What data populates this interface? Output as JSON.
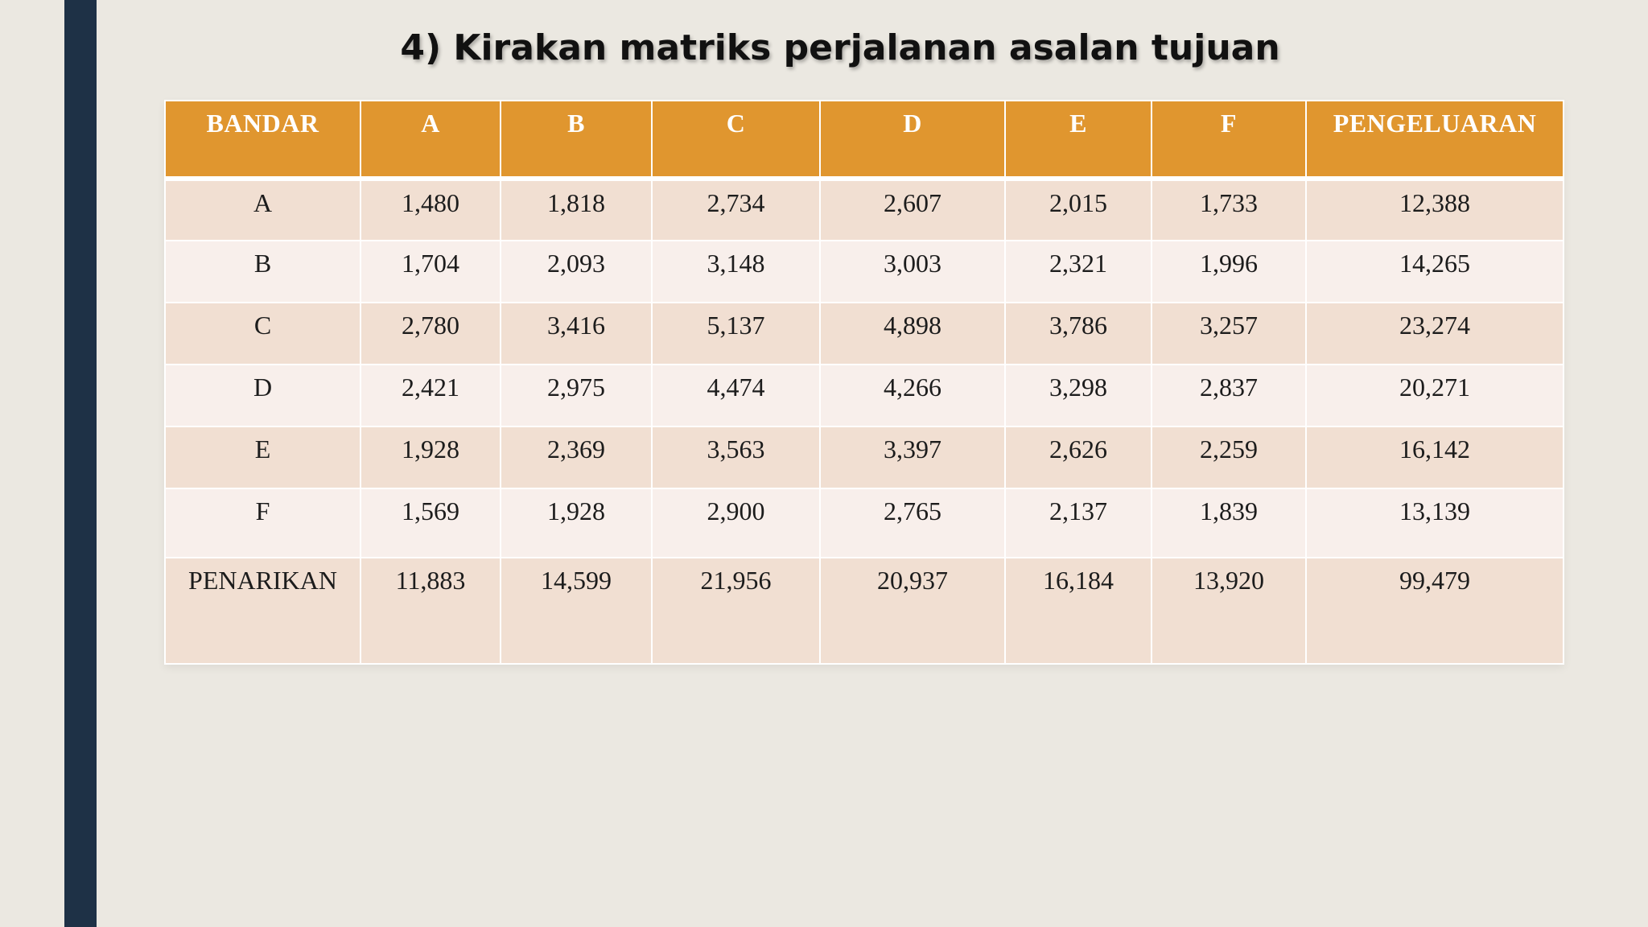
{
  "slide": {
    "title": "4) Kirakan matriks perjalanan asalan tujuan"
  },
  "table": {
    "headers": [
      "BANDAR",
      "A",
      "B",
      "C",
      "D",
      "E",
      "F",
      "PENGELUARAN"
    ],
    "rows": [
      [
        "A",
        "1,480",
        "1,818",
        "2,734",
        "2,607",
        "2,015",
        "1,733",
        "12,388"
      ],
      [
        "B",
        "1,704",
        "2,093",
        "3,148",
        "3,003",
        "2,321",
        "1,996",
        "14,265"
      ],
      [
        "C",
        "2,780",
        "3,416",
        "5,137",
        "4,898",
        "3,786",
        "3,257",
        "23,274"
      ],
      [
        "D",
        "2,421",
        "2,975",
        "4,474",
        "4,266",
        "3,298",
        "2,837",
        "20,271"
      ],
      [
        "E",
        "1,928",
        "2,369",
        "3,563",
        "3,397",
        "2,626",
        "2,259",
        "16,142"
      ],
      [
        "F",
        "1,569",
        "1,928",
        "2,900",
        "2,765",
        "2,137",
        "1,839",
        "13,139"
      ],
      [
        "PENARIKAN",
        "11,883",
        "14,599",
        "21,956",
        "20,937",
        "16,184",
        "13,920",
        "99,479"
      ]
    ]
  },
  "colors": {
    "header": "#e0962f",
    "row_shaded": "#f1dfd2",
    "row_light": "#f8efeb",
    "accent_bar": "#1e3146",
    "background": "#ebe8e1"
  }
}
